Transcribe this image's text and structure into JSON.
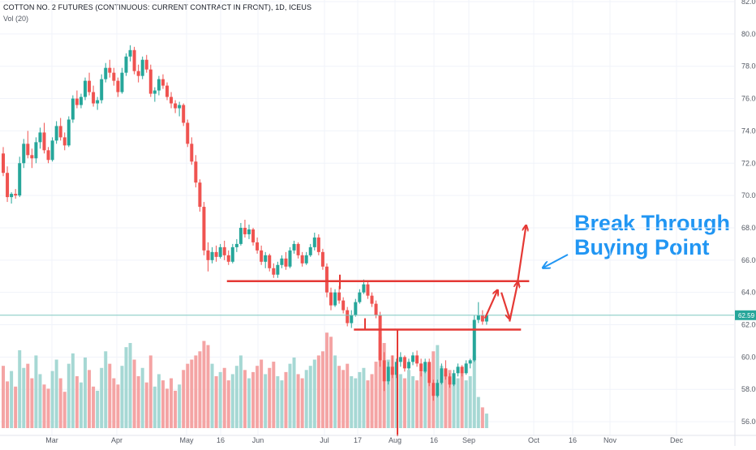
{
  "header": {
    "title": "COTTON NO. 2 FUTURES (CONTINUOUS: CURRENT CONTRACT IN FRONT), 1D, ICEUS",
    "volume_label": "Vol (20)"
  },
  "annotation": {
    "line1": "Break Through",
    "line2": "Buying Point"
  },
  "colors": {
    "up": "#26a69a",
    "down": "#ef5350",
    "up_volume": "#a6d8d4",
    "down_volume": "#f4a4a4",
    "drawing": "#e53935",
    "annotation": "#2196f3",
    "last_price_line": "#7fc8c0"
  },
  "chart_data": {
    "type": "candlestick",
    "title": "COTTON NO. 2 FUTURES (CONTINUOUS: CURRENT CONTRACT IN FRONT), 1D, ICEUS",
    "ylim": [
      55,
      82
    ],
    "y_ticks": [
      "82.00",
      "80.00",
      "78.00",
      "76.00",
      "74.00",
      "72.00",
      "70.00",
      "68.00",
      "66.00",
      "64.00",
      "62.00",
      "60.00",
      "58.00",
      "56.00"
    ],
    "x_ticks": [
      "Mar",
      "Apr",
      "May",
      "16",
      "Jun",
      "Jul",
      "17",
      "Aug",
      "16",
      "Sep",
      "Oct",
      "16",
      "Nov",
      "Dec"
    ],
    "last_price": "62.59",
    "series": [
      {
        "name": "price",
        "candles": [
          [
            72.6,
            73.0,
            71.2,
            71.4
          ],
          [
            71.4,
            71.8,
            69.6,
            69.9
          ],
          [
            69.9,
            70.2,
            69.5,
            70.1
          ],
          [
            70.1,
            70.4,
            69.8,
            70.0
          ],
          [
            70.0,
            72.4,
            69.9,
            72.0
          ],
          [
            72.0,
            73.5,
            71.7,
            73.2
          ],
          [
            73.2,
            74.0,
            72.3,
            72.5
          ],
          [
            72.5,
            72.9,
            71.7,
            72.3
          ],
          [
            72.3,
            73.6,
            72.0,
            73.3
          ],
          [
            73.3,
            74.2,
            72.9,
            73.9
          ],
          [
            73.9,
            74.5,
            72.6,
            72.8
          ],
          [
            72.8,
            73.0,
            72.0,
            72.2
          ],
          [
            72.2,
            73.6,
            72.1,
            73.4
          ],
          [
            73.4,
            74.6,
            73.2,
            74.3
          ],
          [
            74.3,
            74.8,
            73.4,
            73.6
          ],
          [
            73.6,
            73.9,
            72.8,
            73.1
          ],
          [
            73.1,
            74.9,
            73.0,
            74.7
          ],
          [
            74.7,
            76.2,
            74.5,
            76.0
          ],
          [
            76.0,
            76.5,
            75.4,
            75.6
          ],
          [
            75.6,
            76.3,
            75.4,
            76.1
          ],
          [
            76.1,
            77.3,
            75.9,
            77.1
          ],
          [
            77.1,
            77.6,
            76.2,
            76.4
          ],
          [
            76.4,
            76.8,
            75.5,
            75.7
          ],
          [
            75.7,
            76.1,
            75.3,
            75.9
          ],
          [
            75.9,
            77.5,
            75.7,
            77.2
          ],
          [
            77.2,
            78.2,
            77.0,
            77.9
          ],
          [
            77.9,
            78.4,
            77.3,
            77.6
          ],
          [
            77.6,
            77.9,
            76.8,
            77.1
          ],
          [
            77.1,
            77.3,
            76.1,
            76.4
          ],
          [
            76.4,
            77.9,
            76.3,
            77.6
          ],
          [
            77.6,
            78.8,
            77.4,
            78.6
          ],
          [
            78.6,
            79.3,
            78.3,
            79.0
          ],
          [
            79.0,
            79.2,
            77.5,
            77.7
          ],
          [
            77.7,
            78.1,
            77.0,
            77.4
          ],
          [
            77.4,
            78.6,
            77.2,
            78.4
          ],
          [
            78.4,
            78.7,
            77.6,
            77.8
          ],
          [
            77.8,
            78.1,
            76.1,
            76.3
          ],
          [
            76.3,
            76.7,
            75.8,
            76.5
          ],
          [
            76.5,
            77.4,
            76.2,
            77.2
          ],
          [
            77.2,
            77.5,
            76.6,
            76.8
          ],
          [
            76.8,
            77.0,
            75.9,
            76.1
          ],
          [
            76.1,
            76.4,
            75.4,
            75.7
          ],
          [
            75.7,
            75.9,
            75.1,
            75.4
          ],
          [
            75.4,
            75.8,
            74.9,
            75.6
          ],
          [
            75.6,
            75.7,
            74.3,
            74.5
          ],
          [
            74.5,
            74.7,
            73.0,
            73.2
          ],
          [
            73.2,
            73.6,
            71.9,
            72.1
          ],
          [
            72.1,
            72.5,
            70.5,
            70.8
          ],
          [
            70.8,
            71.0,
            69.0,
            69.3
          ],
          [
            69.3,
            69.6,
            66.3,
            66.6
          ],
          [
            66.6,
            67.1,
            65.3,
            66.0
          ],
          [
            66.0,
            66.8,
            65.8,
            66.5
          ],
          [
            66.5,
            66.9,
            65.9,
            66.2
          ],
          [
            66.2,
            67.0,
            66.1,
            66.8
          ],
          [
            66.8,
            67.2,
            66.0,
            66.3
          ],
          [
            66.3,
            66.6,
            65.7,
            65.9
          ],
          [
            65.9,
            67.0,
            65.8,
            66.8
          ],
          [
            66.8,
            67.3,
            66.5,
            67.0
          ],
          [
            67.0,
            68.3,
            66.9,
            68.0
          ],
          [
            68.0,
            68.5,
            67.4,
            67.6
          ],
          [
            67.6,
            68.2,
            67.3,
            67.9
          ],
          [
            67.9,
            68.0,
            66.9,
            67.1
          ],
          [
            67.1,
            67.4,
            66.4,
            66.6
          ],
          [
            66.6,
            66.9,
            65.7,
            65.9
          ],
          [
            65.9,
            66.5,
            65.5,
            66.3
          ],
          [
            66.3,
            66.4,
            65.3,
            65.5
          ],
          [
            65.5,
            65.8,
            64.9,
            65.1
          ],
          [
            65.1,
            65.9,
            64.9,
            65.7
          ],
          [
            65.7,
            66.3,
            65.5,
            66.1
          ],
          [
            66.1,
            66.5,
            65.4,
            65.6
          ],
          [
            65.6,
            66.8,
            65.5,
            66.6
          ],
          [
            66.6,
            67.2,
            66.4,
            67.0
          ],
          [
            67.0,
            67.1,
            66.1,
            66.3
          ],
          [
            66.3,
            66.5,
            65.6,
            65.8
          ],
          [
            65.8,
            66.5,
            65.7,
            66.3
          ],
          [
            66.3,
            67.0,
            66.2,
            66.8
          ],
          [
            66.8,
            67.7,
            66.6,
            67.4
          ],
          [
            67.4,
            67.6,
            66.3,
            66.5
          ],
          [
            66.5,
            66.7,
            65.4,
            65.6
          ],
          [
            65.6,
            65.8,
            63.7,
            64.0
          ],
          [
            64.0,
            64.3,
            62.9,
            63.2
          ],
          [
            63.2,
            64.2,
            63.1,
            64.0
          ],
          [
            64.0,
            64.4,
            63.3,
            63.5
          ],
          [
            63.5,
            63.7,
            62.7,
            62.9
          ],
          [
            62.9,
            63.1,
            61.9,
            62.1
          ],
          [
            62.1,
            62.9,
            61.8,
            62.6
          ],
          [
            62.6,
            63.6,
            62.5,
            63.4
          ],
          [
            63.4,
            64.2,
            63.3,
            64.0
          ],
          [
            64.0,
            64.8,
            63.9,
            64.5
          ],
          [
            64.5,
            64.7,
            63.6,
            63.8
          ],
          [
            63.8,
            64.0,
            63.1,
            63.3
          ],
          [
            63.3,
            63.5,
            62.4,
            62.6
          ],
          [
            62.6,
            62.8,
            59.4,
            59.8
          ],
          [
            59.8,
            60.3,
            57.9,
            58.5
          ],
          [
            58.5,
            59.7,
            58.3,
            59.4
          ],
          [
            59.4,
            60.1,
            58.7,
            58.9
          ],
          [
            58.9,
            59.9,
            58.7,
            59.7
          ],
          [
            59.7,
            60.3,
            59.4,
            60.0
          ],
          [
            60.0,
            60.1,
            59.1,
            59.3
          ],
          [
            59.3,
            59.9,
            59.2,
            59.7
          ],
          [
            59.7,
            60.3,
            59.5,
            60.1
          ],
          [
            60.1,
            60.4,
            59.4,
            59.6
          ],
          [
            59.6,
            59.9,
            58.8,
            59.1
          ],
          [
            59.1,
            59.9,
            59.0,
            59.7
          ],
          [
            59.7,
            59.9,
            58.2,
            58.4
          ],
          [
            58.4,
            58.6,
            57.3,
            57.6
          ],
          [
            57.6,
            58.6,
            57.5,
            58.4
          ],
          [
            58.4,
            59.6,
            58.3,
            59.3
          ],
          [
            59.3,
            59.8,
            58.6,
            58.8
          ],
          [
            58.8,
            59.0,
            58.1,
            58.3
          ],
          [
            58.3,
            59.2,
            58.2,
            59.0
          ],
          [
            59.0,
            59.6,
            58.8,
            59.4
          ],
          [
            59.4,
            59.5,
            58.8,
            59.0
          ],
          [
            59.0,
            59.8,
            58.9,
            59.6
          ],
          [
            59.6,
            59.9,
            59.3,
            59.8
          ],
          [
            59.8,
            62.6,
            59.7,
            62.3
          ],
          [
            62.3,
            63.4,
            62.1,
            62.6
          ],
          [
            62.6,
            62.9,
            62.0,
            62.2
          ],
          [
            62.2,
            62.7,
            62.0,
            62.59
          ]
        ],
        "volumes": [
          60,
          45,
          55,
          40,
          75,
          58,
          62,
          48,
          70,
          52,
          42,
          38,
          55,
          66,
          48,
          35,
          62,
          72,
          50,
          44,
          68,
          56,
          40,
          36,
          58,
          74,
          62,
          48,
          42,
          60,
          78,
          82,
          66,
          50,
          58,
          44,
          70,
          40,
          52,
          46,
          38,
          48,
          36,
          42,
          56,
          62,
          66,
          70,
          74,
          84,
          80,
          62,
          50,
          54,
          58,
          46,
          52,
          60,
          70,
          56,
          48,
          54,
          60,
          66,
          52,
          58,
          64,
          50,
          46,
          54,
          62,
          68,
          52,
          48,
          56,
          60,
          66,
          70,
          74,
          92,
          88,
          70,
          60,
          56,
          62,
          50,
          48,
          54,
          58,
          46,
          52,
          64,
          88,
          82,
          66,
          70,
          60,
          52,
          48,
          56,
          50,
          46,
          54,
          58,
          62,
          74,
          80,
          60,
          52,
          56,
          50,
          48,
          54,
          46,
          50,
          70,
          30,
          20,
          14
        ]
      }
    ],
    "support_levels": [
      {
        "from_index": 55,
        "to_index": 128,
        "y": 64.7
      },
      {
        "from_index": 86,
        "to_index": 126,
        "y": 61.7
      }
    ],
    "projection_path": [
      {
        "from": [
          118,
          62.4
        ],
        "to": [
          121,
          64.1
        ]
      },
      {
        "from": [
          122,
          64.0
        ],
        "to": [
          124,
          62.4
        ]
      },
      {
        "from": [
          124,
          62.2
        ],
        "to": [
          126,
          64.6
        ]
      },
      {
        "from": [
          126,
          64.7
        ],
        "to": [
          128,
          68.1
        ]
      }
    ]
  }
}
